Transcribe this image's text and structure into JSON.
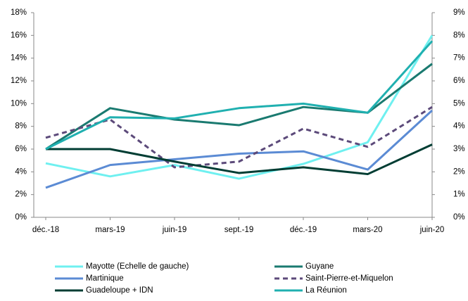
{
  "chart_data": {
    "type": "line",
    "categories": [
      "déc.-18",
      "mars-19",
      "juin-19",
      "sept.-19",
      "déc.-19",
      "mars-20",
      "juin-20"
    ],
    "series": [
      {
        "name": "Mayotte (Echelle de gauche)",
        "color": "#6ff0f0",
        "values": [
          4.75,
          3.6,
          4.6,
          3.4,
          4.7,
          6.6,
          16.0
        ]
      },
      {
        "name": "Guyane",
        "color": "#1a7a70",
        "axis": "y2",
        "values": [
          3.0,
          4.8,
          4.3,
          4.05,
          4.85,
          4.6,
          6.75
        ]
      },
      {
        "name": "Martinique",
        "color": "#5b8bd4",
        "axis": "y2",
        "values": [
          1.3,
          2.3,
          2.55,
          2.8,
          2.9,
          2.1,
          4.7
        ]
      },
      {
        "name": "Saint-Pierre-et-Miquelon",
        "color": "#5c4a7a",
        "axis": "y2",
        "dashed": true,
        "values": [
          3.5,
          4.3,
          2.2,
          2.45,
          3.9,
          3.1,
          4.85
        ]
      },
      {
        "name": "Guadeloupe + IDN",
        "color": "#003d33",
        "axis": "y2",
        "values": [
          3.0,
          3.0,
          2.45,
          1.95,
          2.2,
          1.9,
          3.2
        ]
      },
      {
        "name": "La Réunion",
        "color": "#20b0b0",
        "axis": "y2",
        "values": [
          3.0,
          4.4,
          4.35,
          4.8,
          5.0,
          4.6,
          7.75
        ]
      }
    ],
    "ylim": [
      0,
      18
    ],
    "yticks": [
      {
        "value": 0,
        "label": "0%"
      },
      {
        "value": 2,
        "label": "2%"
      },
      {
        "value": 4,
        "label": "4%"
      },
      {
        "value": 6,
        "label": "6%"
      },
      {
        "value": 8,
        "label": "8%"
      },
      {
        "value": 10,
        "label": "10%"
      },
      {
        "value": 12,
        "label": "12%"
      },
      {
        "value": 14,
        "label": "14%"
      },
      {
        "value": 16,
        "label": "16%"
      },
      {
        "value": 18,
        "label": "18%"
      }
    ],
    "y2lim": [
      0,
      9
    ],
    "y2ticks": [
      {
        "value": 0,
        "label": "0%"
      },
      {
        "value": 1,
        "label": "1%"
      },
      {
        "value": 2,
        "label": "2%"
      },
      {
        "value": 3,
        "label": "3%"
      },
      {
        "value": 4,
        "label": "4%"
      },
      {
        "value": 5,
        "label": "5%"
      },
      {
        "value": 6,
        "label": "6%"
      },
      {
        "value": 7,
        "label": "7%"
      },
      {
        "value": 8,
        "label": "8%"
      },
      {
        "value": 9,
        "label": "9%"
      }
    ]
  }
}
